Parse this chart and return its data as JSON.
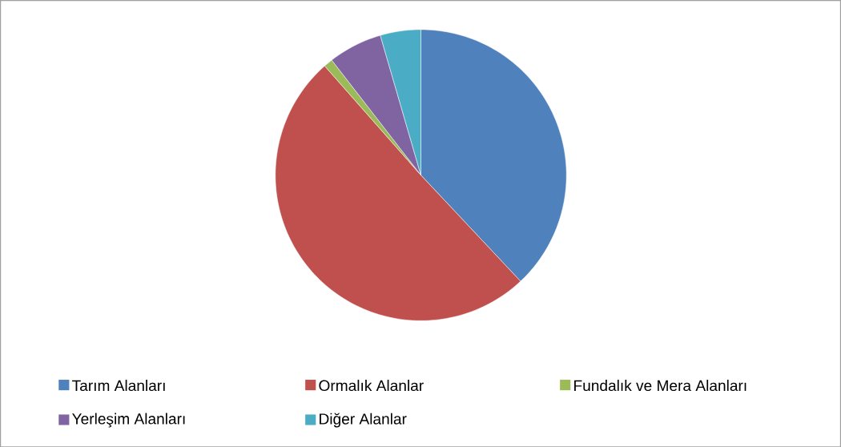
{
  "chart_data": {
    "type": "pie",
    "categories": [
      "Tarım Alanları",
      "Ormalık Alanlar",
      "Fundalık ve Mera Alanları",
      "Yerleşim Alanları",
      "Diğer Alanlar"
    ],
    "values": [
      38,
      50.5,
      1,
      6,
      4.5
    ],
    "colors": [
      "#4f81bd",
      "#c0504d",
      "#9bbb59",
      "#8064a2",
      "#4bacc6"
    ],
    "legend": "bottom"
  }
}
